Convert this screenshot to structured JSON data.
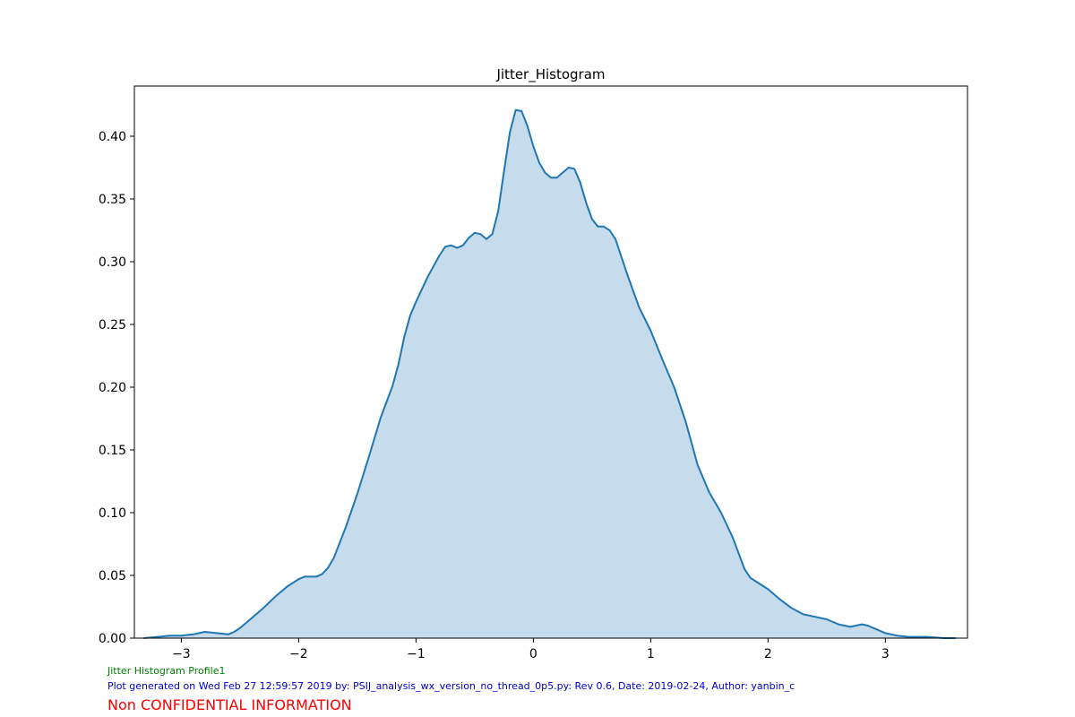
{
  "chart_data": {
    "type": "area",
    "title": "Jitter_Histogram",
    "xlabel": "",
    "ylabel": "",
    "xlim": [
      -3.4,
      3.7
    ],
    "ylim": [
      0,
      0.44
    ],
    "xticks": [
      -3,
      -2,
      -1,
      0,
      1,
      2,
      3
    ],
    "xtick_labels": [
      "−3",
      "−2",
      "−1",
      "0",
      "1",
      "2",
      "3"
    ],
    "yticks": [
      0.0,
      0.05,
      0.1,
      0.15,
      0.2,
      0.25,
      0.3,
      0.35,
      0.4
    ],
    "ytick_labels": [
      "0.00",
      "0.05",
      "0.10",
      "0.15",
      "0.20",
      "0.25",
      "0.30",
      "0.35",
      "0.40"
    ],
    "grid": false,
    "series": [
      {
        "line_color": "#1f77b4",
        "fill_color": "#c6dbec",
        "points": [
          [
            -3.32,
            0.0
          ],
          [
            -3.2,
            0.001
          ],
          [
            -3.1,
            0.002
          ],
          [
            -3.0,
            0.002
          ],
          [
            -2.9,
            0.003
          ],
          [
            -2.8,
            0.005
          ],
          [
            -2.7,
            0.004
          ],
          [
            -2.6,
            0.003
          ],
          [
            -2.55,
            0.005
          ],
          [
            -2.5,
            0.008
          ],
          [
            -2.4,
            0.016
          ],
          [
            -2.3,
            0.024
          ],
          [
            -2.2,
            0.033
          ],
          [
            -2.1,
            0.041
          ],
          [
            -2.0,
            0.047
          ],
          [
            -1.95,
            0.049
          ],
          [
            -1.9,
            0.049
          ],
          [
            -1.85,
            0.049
          ],
          [
            -1.8,
            0.051
          ],
          [
            -1.75,
            0.056
          ],
          [
            -1.7,
            0.064
          ],
          [
            -1.6,
            0.088
          ],
          [
            -1.5,
            0.115
          ],
          [
            -1.4,
            0.145
          ],
          [
            -1.3,
            0.176
          ],
          [
            -1.2,
            0.201
          ],
          [
            -1.15,
            0.218
          ],
          [
            -1.1,
            0.24
          ],
          [
            -1.05,
            0.257
          ],
          [
            -1.0,
            0.268
          ],
          [
            -0.9,
            0.288
          ],
          [
            -0.8,
            0.305
          ],
          [
            -0.75,
            0.312
          ],
          [
            -0.7,
            0.313
          ],
          [
            -0.65,
            0.311
          ],
          [
            -0.6,
            0.313
          ],
          [
            -0.55,
            0.319
          ],
          [
            -0.5,
            0.323
          ],
          [
            -0.45,
            0.322
          ],
          [
            -0.4,
            0.318
          ],
          [
            -0.35,
            0.322
          ],
          [
            -0.3,
            0.34
          ],
          [
            -0.25,
            0.372
          ],
          [
            -0.2,
            0.403
          ],
          [
            -0.15,
            0.421
          ],
          [
            -0.1,
            0.42
          ],
          [
            -0.05,
            0.408
          ],
          [
            0.0,
            0.392
          ],
          [
            0.05,
            0.379
          ],
          [
            0.1,
            0.371
          ],
          [
            0.15,
            0.367
          ],
          [
            0.2,
            0.367
          ],
          [
            0.25,
            0.371
          ],
          [
            0.3,
            0.375
          ],
          [
            0.35,
            0.374
          ],
          [
            0.4,
            0.363
          ],
          [
            0.45,
            0.347
          ],
          [
            0.5,
            0.334
          ],
          [
            0.55,
            0.328
          ],
          [
            0.6,
            0.328
          ],
          [
            0.65,
            0.325
          ],
          [
            0.7,
            0.318
          ],
          [
            0.75,
            0.304
          ],
          [
            0.8,
            0.29
          ],
          [
            0.9,
            0.264
          ],
          [
            1.0,
            0.245
          ],
          [
            1.1,
            0.222
          ],
          [
            1.2,
            0.2
          ],
          [
            1.3,
            0.172
          ],
          [
            1.35,
            0.155
          ],
          [
            1.4,
            0.138
          ],
          [
            1.5,
            0.116
          ],
          [
            1.6,
            0.1
          ],
          [
            1.7,
            0.08
          ],
          [
            1.8,
            0.055
          ],
          [
            1.85,
            0.048
          ],
          [
            1.9,
            0.045
          ],
          [
            2.0,
            0.039
          ],
          [
            2.1,
            0.031
          ],
          [
            2.2,
            0.024
          ],
          [
            2.3,
            0.019
          ],
          [
            2.4,
            0.017
          ],
          [
            2.5,
            0.015
          ],
          [
            2.6,
            0.011
          ],
          [
            2.7,
            0.009
          ],
          [
            2.8,
            0.011
          ],
          [
            2.85,
            0.01
          ],
          [
            2.9,
            0.008
          ],
          [
            3.0,
            0.004
          ],
          [
            3.1,
            0.002
          ],
          [
            3.2,
            0.001
          ],
          [
            3.35,
            0.001
          ],
          [
            3.5,
            0.0
          ],
          [
            3.6,
            0.0
          ]
        ]
      }
    ]
  },
  "footer": {
    "profile": "Jitter Histogram Profile1",
    "profile_color": "#008000",
    "generated": "Plot generated on Wed Feb 27 12:59:57 2019 by: PSIJ_analysis_wx_version_no_thread_0p5.py: Rev 0.6, Date: 2019-02-24, Author: yanbin_c",
    "generated_color": "#0000cc",
    "confidential": "Non CONFIDENTIAL INFORMATION",
    "confidential_color": "#ff0000"
  }
}
